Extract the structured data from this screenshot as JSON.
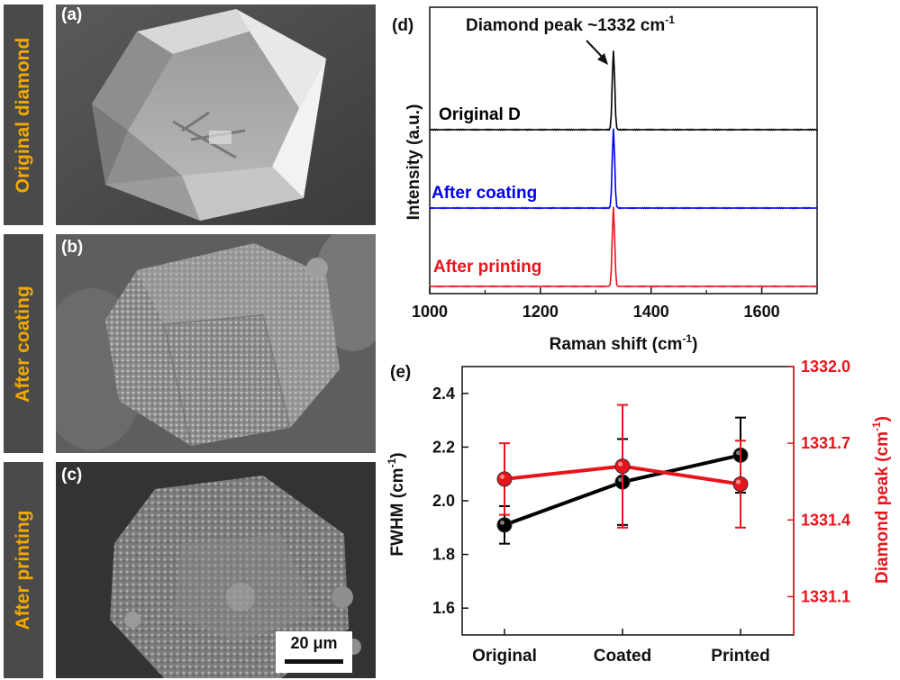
{
  "sem_panels": [
    {
      "tag": "(a)",
      "side_label": "Original diamond"
    },
    {
      "tag": "(b)",
      "side_label": "After coating"
    },
    {
      "tag": "(c)",
      "side_label": "After printing"
    }
  ],
  "scale_bar": "20 μm",
  "colors": {
    "black": "#000000",
    "blue": "#0000ee",
    "red": "#e8141b",
    "side_label_text": "#f2a900",
    "side_label_bg": "#4a4a4a"
  },
  "chart_data": [
    {
      "panel": "(d)",
      "type": "line",
      "annotation": "Diamond peak ~1332 cm",
      "annotation_sup": "-1",
      "xlabel": "Raman shift (cm",
      "xlabel_sup": "-1",
      "xlabel_end": ")",
      "ylabel": "Intensity (a.u.)",
      "xlim": [
        1000,
        1700
      ],
      "xticks": [
        "1000",
        "1200",
        "1400",
        "1600"
      ],
      "peak_x": 1332,
      "series": [
        {
          "name": "Original D",
          "color": "#000000"
        },
        {
          "name": "After coating",
          "color": "#0000ee"
        },
        {
          "name": "After printing",
          "color": "#e8141b"
        }
      ]
    },
    {
      "panel": "(e)",
      "type": "line",
      "categories": [
        "Original",
        "Coated",
        "Printed"
      ],
      "ylabel": "FWHM (cm",
      "ylabel_sup": "-1",
      "ylabel_end": ")",
      "ylim": [
        1.5,
        2.5
      ],
      "yticks": [
        "1.6",
        "1.8",
        "2.0",
        "2.2",
        "2.4"
      ],
      "y2label": "Diamond peak (cm",
      "y2label_sup": "-1",
      "y2label_end": ")",
      "y2lim": [
        1330.95,
        1332.0
      ],
      "y2ticks": [
        "1331.1",
        "1331.4",
        "1331.7",
        "1332.0"
      ],
      "series": [
        {
          "axis": "left",
          "color": "#000000",
          "values": [
            1.91,
            2.07,
            2.17
          ],
          "err": [
            0.07,
            0.16,
            0.14
          ]
        },
        {
          "axis": "right",
          "color": "#e8141b",
          "values": [
            1331.56,
            1331.61,
            1331.54
          ],
          "err": [
            0.14,
            0.24,
            0.17
          ]
        }
      ]
    }
  ]
}
